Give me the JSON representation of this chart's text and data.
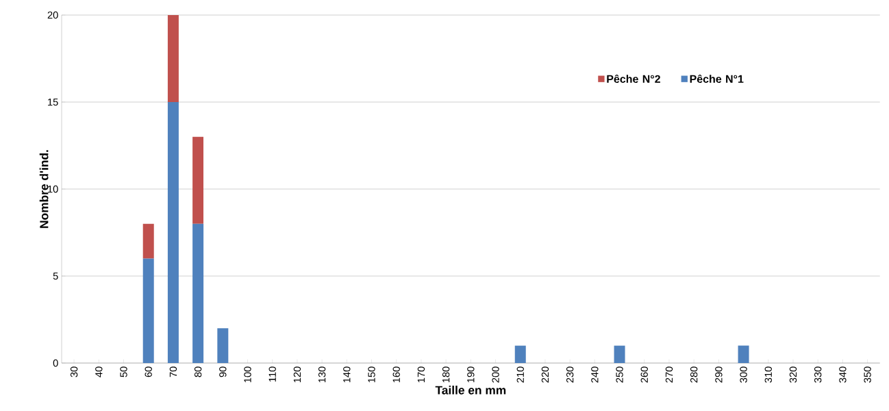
{
  "chart_data": {
    "type": "bar",
    "stacked": true,
    "xlabel": "Taille en mm",
    "ylabel": "Nombre d'ind.",
    "categories": [
      "30",
      "40",
      "50",
      "60",
      "70",
      "80",
      "90",
      "100",
      "110",
      "120",
      "130",
      "140",
      "150",
      "160",
      "170",
      "180",
      "190",
      "200",
      "210",
      "220",
      "230",
      "240",
      "250",
      "260",
      "270",
      "280",
      "290",
      "300",
      "310",
      "320",
      "330",
      "340",
      "350"
    ],
    "series": [
      {
        "name": "Pêche N°1",
        "color": "#4f81bd",
        "values": [
          0,
          0,
          0,
          6,
          15,
          8,
          2,
          0,
          0,
          0,
          0,
          0,
          0,
          0,
          0,
          0,
          0,
          0,
          1,
          0,
          0,
          0,
          1,
          0,
          0,
          0,
          0,
          1,
          0,
          0,
          0,
          0,
          0
        ]
      },
      {
        "name": "Pêche N°2",
        "color": "#c0504d",
        "values": [
          0,
          0,
          0,
          2,
          5,
          5,
          0,
          0,
          0,
          0,
          0,
          0,
          0,
          0,
          0,
          0,
          0,
          0,
          0,
          0,
          0,
          0,
          0,
          0,
          0,
          0,
          0,
          0,
          0,
          0,
          0,
          0,
          0
        ]
      }
    ],
    "ylim": [
      0,
      20
    ],
    "yticks": [
      0,
      5,
      10,
      15,
      20
    ],
    "grid": "y",
    "legend": "top right"
  }
}
